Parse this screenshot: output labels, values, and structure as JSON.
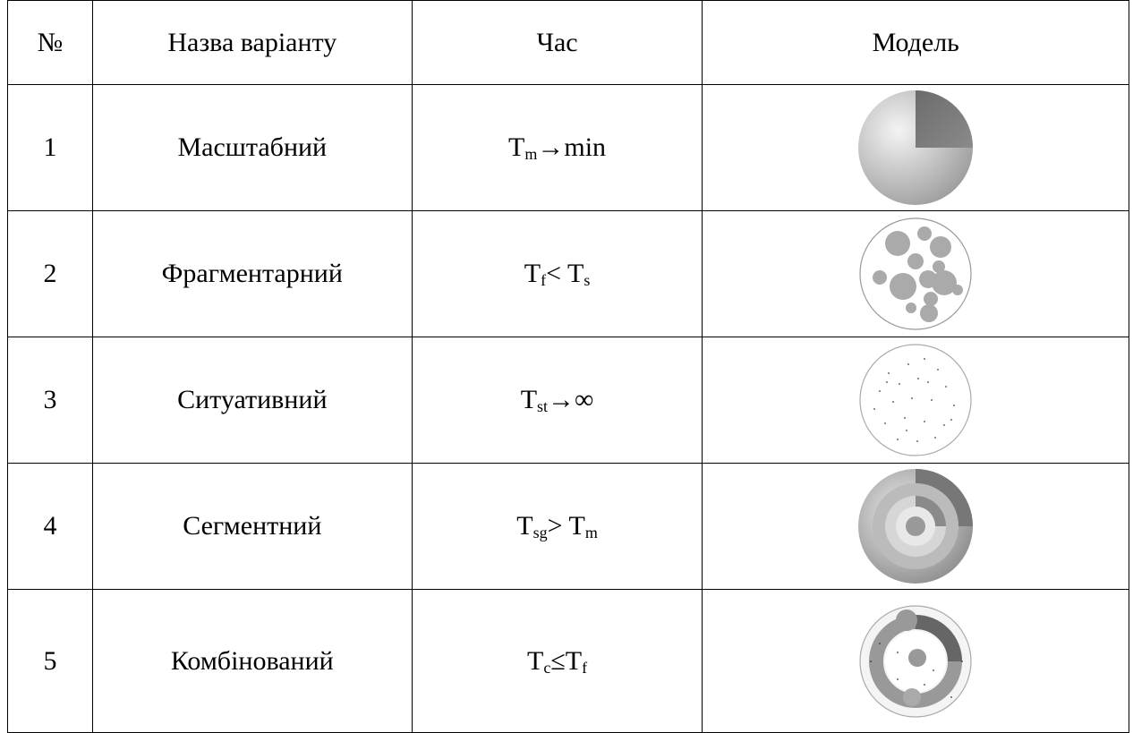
{
  "table": {
    "header": [
      "№",
      "Назва варіанту",
      "Час",
      "Модель"
    ],
    "rows": [
      {
        "number": "1",
        "name": "Масштабний",
        "time": [
          "T",
          "m",
          "→min"
        ]
      },
      {
        "number": "2",
        "name": "Фрагментарний",
        "time": [
          "T",
          "f",
          "< T",
          "s"
        ]
      },
      {
        "number": "3",
        "name": "Ситуативний",
        "time": [
          "T",
          "st",
          "→∞"
        ]
      },
      {
        "number": "4",
        "name": "Сегментний",
        "time": [
          "T",
          "sg",
          "> T",
          "m"
        ]
      },
      {
        "number": "5",
        "name": "Комбінований",
        "time": [
          "T",
          "c",
          "≤T",
          "f"
        ]
      }
    ]
  }
}
